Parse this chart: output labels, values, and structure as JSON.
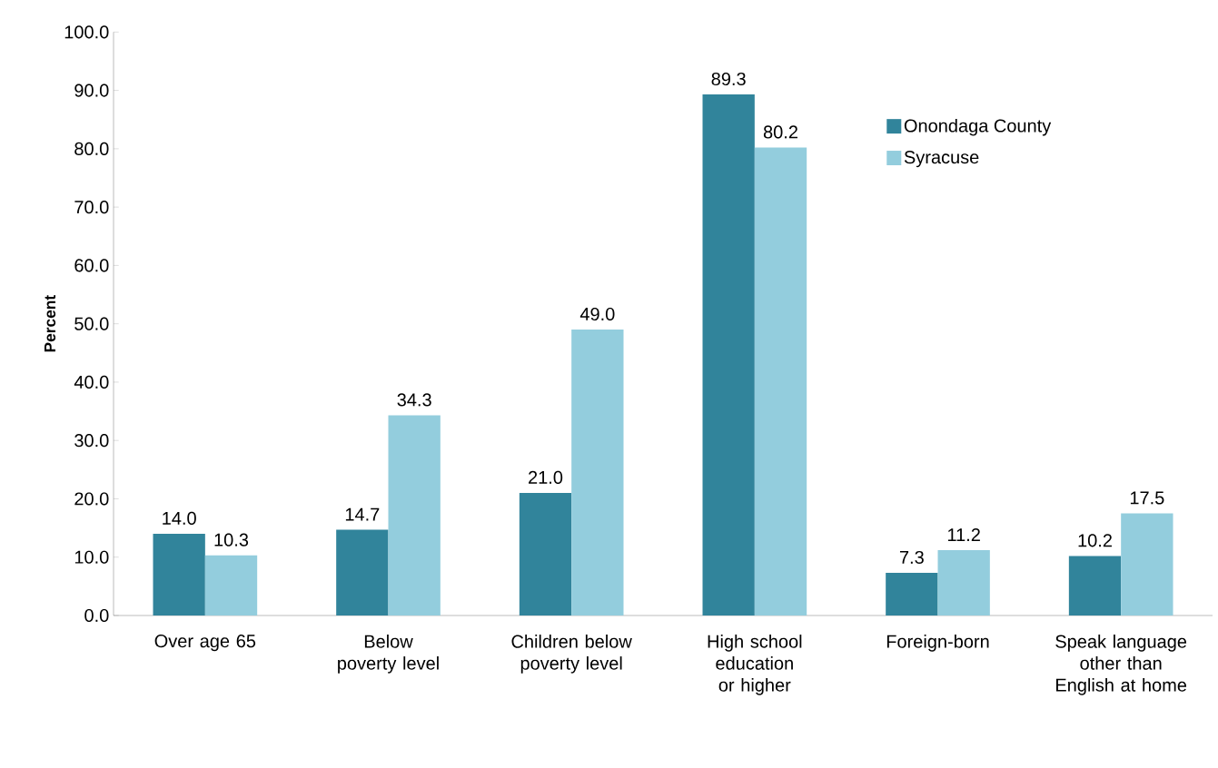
{
  "chart_data": {
    "type": "bar",
    "ylabel": "Percent",
    "categories": [
      "Over age 65",
      "Below poverty level",
      "Children below poverty level",
      "High school education or higher",
      "Foreign-born",
      "Speak language other than English at home"
    ],
    "series": [
      {
        "name": "Onondaga County",
        "color": "#31849b",
        "values": [
          14.0,
          14.7,
          21.0,
          89.3,
          7.3,
          10.2
        ],
        "value_labels": [
          "14.0",
          "14.7",
          "21.0",
          "89.3",
          "7.3",
          "10.2"
        ]
      },
      {
        "name": "Syracuse",
        "color": "#93cddd",
        "values": [
          10.3,
          34.3,
          49.0,
          80.2,
          11.2,
          17.5
        ],
        "value_labels": [
          "10.3",
          "34.3",
          "49.0",
          "80.2",
          "11.2",
          "17.5"
        ]
      }
    ],
    "ylim": [
      0,
      100
    ],
    "yticks": [
      {
        "value": 0,
        "label": "0.0"
      },
      {
        "value": 10,
        "label": "10.0"
      },
      {
        "value": 20,
        "label": "20.0"
      },
      {
        "value": 30,
        "label": "30.0"
      },
      {
        "value": 40,
        "label": "40.0"
      },
      {
        "value": 50,
        "label": "50.0"
      },
      {
        "value": 60,
        "label": "60.0"
      },
      {
        "value": 70,
        "label": "70.0"
      },
      {
        "value": 80,
        "label": "80.0"
      },
      {
        "value": 90,
        "label": "90.0"
      },
      {
        "value": 100,
        "label": "100.0"
      }
    ],
    "legend": "top right",
    "grid": false
  }
}
